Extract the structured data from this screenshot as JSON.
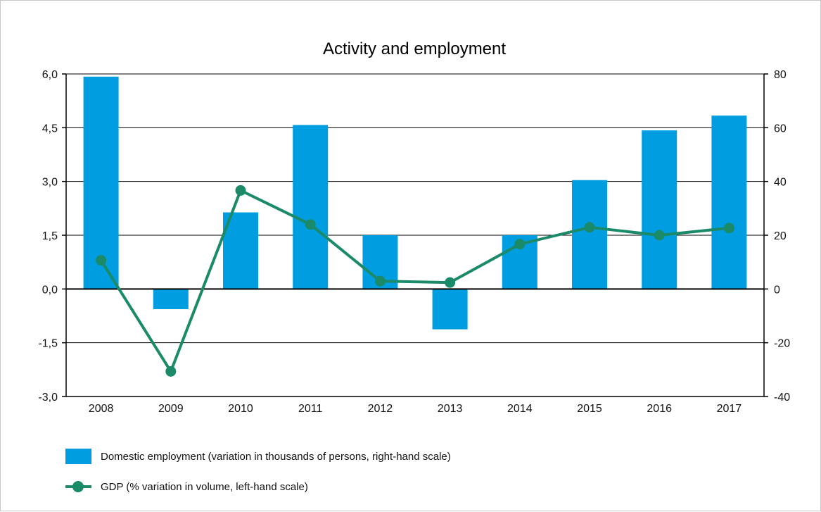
{
  "chart_data": {
    "type": "bar",
    "title": "Activity and employment",
    "categories": [
      "2008",
      "2009",
      "2010",
      "2011",
      "2012",
      "2013",
      "2014",
      "2015",
      "2016",
      "2017"
    ],
    "series": [
      {
        "name": "Domestic employment (variation in thousands of persons, right-hand scale)",
        "type": "bar",
        "axis": "right",
        "color": "#009ee0",
        "values": [
          79,
          -7.5,
          28.5,
          61,
          20,
          -15,
          20,
          40.5,
          59,
          64.5
        ]
      },
      {
        "name": "GDP (% variation in volume, left-hand scale)",
        "type": "line",
        "axis": "left",
        "color": "#1a8a68",
        "values": [
          0.8,
          -2.3,
          2.75,
          1.8,
          0.22,
          0.18,
          1.25,
          1.72,
          1.5,
          1.7
        ]
      }
    ],
    "y_left": {
      "ylim": [
        -3.0,
        6.0
      ],
      "ticks": [
        "6,0",
        "4,5",
        "3,0",
        "1,5",
        "0,0",
        "-1,5",
        "-3,0"
      ],
      "tick_values": [
        6.0,
        4.5,
        3.0,
        1.5,
        0.0,
        -1.5,
        -3.0
      ]
    },
    "y_right": {
      "ylim": [
        -40,
        80
      ],
      "ticks": [
        "80",
        "60",
        "40",
        "20",
        "0",
        "-20",
        "-40"
      ],
      "tick_values": [
        80,
        60,
        40,
        20,
        0,
        -20,
        -40
      ]
    },
    "grid": true,
    "legend_position": "bottom-left"
  }
}
